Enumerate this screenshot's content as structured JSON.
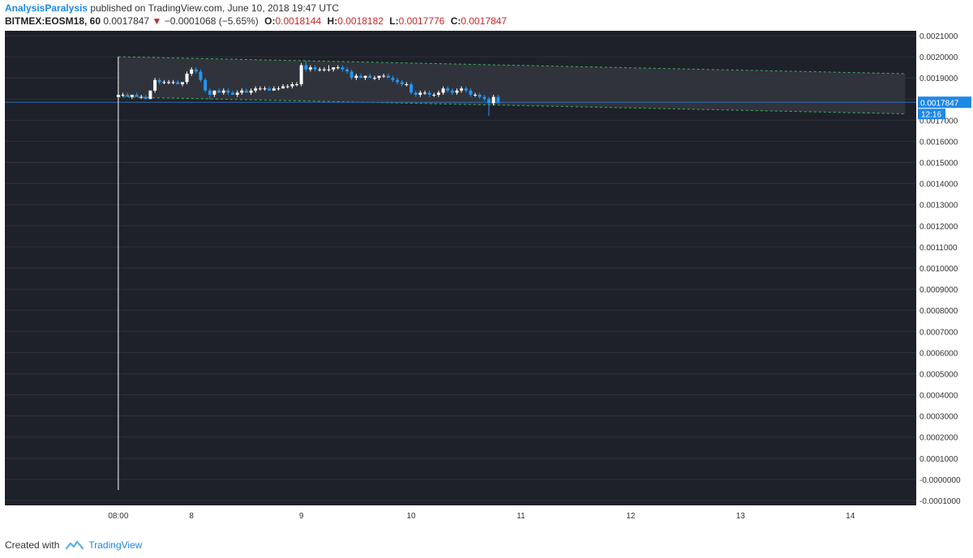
{
  "header": {
    "author": "AnalysisParalysis",
    "published": "published on TradingView.com, June 10, 2018 19:47 UTC",
    "symbol": "BITMEX:EOSM18, 60",
    "last": "0.0017847",
    "change_arrow": "▼",
    "change": "−0.0001068 (−5.65%)",
    "o_label": "O:",
    "o_value": "0.0018144",
    "h_label": "H:",
    "h_value": "0.0018182",
    "l_label": "L:",
    "l_value": "0.0017776",
    "c_label": "C:",
    "c_value": "0.0017847"
  },
  "footer": {
    "created_with": "Created with",
    "brand": "TradingView",
    "logo_icon": "tradingview-logo-icon"
  },
  "colors": {
    "background": "#1e2129",
    "grid_line": "#2e323c",
    "bull": "#ffffff",
    "bear": "#2196f3",
    "channel_line": "#3fae62",
    "channel_fill": "#32353d",
    "price_line": "#2f6fb0",
    "price_label_bg": "#1e88e5"
  },
  "chart_data": {
    "type": "candlestick",
    "y_axis": {
      "ylim": [
        -0.0001,
        0.0021
      ],
      "ticks": [
        "0.0021000",
        "0.0020000",
        "0.0019000",
        "0.0018000",
        "0.0017000",
        "0.0016000",
        "0.0015000",
        "0.0014000",
        "0.0013000",
        "0.0012000",
        "0.0011000",
        "0.0010000",
        "0.0009000",
        "0.0008000",
        "0.0007000",
        "0.0006000",
        "0.0005000",
        "0.0004000",
        "0.0003000",
        "0.0002000",
        "0.0001000",
        "-0.0000000",
        "-0.0001000"
      ]
    },
    "x_axis": {
      "xlim_days": [
        6.3,
        14.6
      ],
      "ticks": [
        {
          "label": "08:00",
          "day": 7.333
        },
        {
          "label": "8",
          "day": 8
        },
        {
          "label": "9",
          "day": 9
        },
        {
          "label": "10",
          "day": 10
        },
        {
          "label": "11",
          "day": 11
        },
        {
          "label": "12",
          "day": 12
        },
        {
          "label": "13",
          "day": 13
        },
        {
          "label": "14",
          "day": 14
        }
      ]
    },
    "last_price": {
      "value": 0.0017847,
      "label": "0.0017847",
      "countdown": "12:16"
    },
    "channel": {
      "upper": [
        [
          7.333,
          0.002
        ],
        [
          14.5,
          0.00192
        ]
      ],
      "lower": [
        [
          7.333,
          0.00181
        ],
        [
          14.5,
          0.00173
        ]
      ]
    },
    "candles": [
      {
        "t": 7.333,
        "o": 0.00181,
        "h": 0.002,
        "l": -5e-05,
        "c": 0.00182
      },
      {
        "t": 7.375,
        "o": 0.00182,
        "h": 0.00183,
        "l": 0.00181,
        "c": 0.00182
      },
      {
        "t": 7.417,
        "o": 0.00182,
        "h": 0.00183,
        "l": 0.00181,
        "c": 0.00181
      },
      {
        "t": 7.458,
        "o": 0.00181,
        "h": 0.00182,
        "l": 0.0018,
        "c": 0.00182
      },
      {
        "t": 7.5,
        "o": 0.00182,
        "h": 0.00183,
        "l": 0.00181,
        "c": 0.00181
      },
      {
        "t": 7.542,
        "o": 0.00181,
        "h": 0.00182,
        "l": 0.0018,
        "c": 0.00181
      },
      {
        "t": 7.583,
        "o": 0.00181,
        "h": 0.00182,
        "l": 0.0018,
        "c": 0.0018
      },
      {
        "t": 7.625,
        "o": 0.0018,
        "h": 0.00184,
        "l": 0.0018,
        "c": 0.00184
      },
      {
        "t": 7.667,
        "o": 0.00184,
        "h": 0.0019,
        "l": 0.00183,
        "c": 0.00189
      },
      {
        "t": 7.708,
        "o": 0.00189,
        "h": 0.0019,
        "l": 0.00187,
        "c": 0.00188
      },
      {
        "t": 7.75,
        "o": 0.00188,
        "h": 0.00189,
        "l": 0.00187,
        "c": 0.00188
      },
      {
        "t": 7.792,
        "o": 0.00188,
        "h": 0.00189,
        "l": 0.00187,
        "c": 0.00188
      },
      {
        "t": 7.833,
        "o": 0.00188,
        "h": 0.00189,
        "l": 0.00187,
        "c": 0.00188
      },
      {
        "t": 7.875,
        "o": 0.00188,
        "h": 0.00189,
        "l": 0.00187,
        "c": 0.00187
      },
      {
        "t": 7.917,
        "o": 0.00187,
        "h": 0.00188,
        "l": 0.00186,
        "c": 0.00188
      },
      {
        "t": 7.958,
        "o": 0.00188,
        "h": 0.00193,
        "l": 0.00187,
        "c": 0.00192
      },
      {
        "t": 8.0,
        "o": 0.00192,
        "h": 0.00195,
        "l": 0.00191,
        "c": 0.00194
      },
      {
        "t": 8.042,
        "o": 0.00194,
        "h": 0.00195,
        "l": 0.00192,
        "c": 0.00193
      },
      {
        "t": 8.083,
        "o": 0.00193,
        "h": 0.00194,
        "l": 0.00188,
        "c": 0.00189
      },
      {
        "t": 8.125,
        "o": 0.00189,
        "h": 0.0019,
        "l": 0.00183,
        "c": 0.00184
      },
      {
        "t": 8.167,
        "o": 0.00184,
        "h": 0.00185,
        "l": 0.0018,
        "c": 0.00182
      },
      {
        "t": 8.208,
        "o": 0.00182,
        "h": 0.00184,
        "l": 0.00181,
        "c": 0.00184
      },
      {
        "t": 8.25,
        "o": 0.00184,
        "h": 0.00185,
        "l": 0.00183,
        "c": 0.00183
      },
      {
        "t": 8.292,
        "o": 0.00183,
        "h": 0.00185,
        "l": 0.00182,
        "c": 0.00184
      },
      {
        "t": 8.333,
        "o": 0.00184,
        "h": 0.00185,
        "l": 0.00182,
        "c": 0.00183
      },
      {
        "t": 8.375,
        "o": 0.00183,
        "h": 0.00184,
        "l": 0.00182,
        "c": 0.00182
      },
      {
        "t": 8.417,
        "o": 0.00182,
        "h": 0.00184,
        "l": 0.00181,
        "c": 0.00183
      },
      {
        "t": 8.458,
        "o": 0.00183,
        "h": 0.00185,
        "l": 0.00182,
        "c": 0.00184
      },
      {
        "t": 8.5,
        "o": 0.00184,
        "h": 0.00185,
        "l": 0.00183,
        "c": 0.00183
      },
      {
        "t": 8.542,
        "o": 0.00183,
        "h": 0.00185,
        "l": 0.00182,
        "c": 0.00184
      },
      {
        "t": 8.583,
        "o": 0.00184,
        "h": 0.00186,
        "l": 0.00183,
        "c": 0.00185
      },
      {
        "t": 8.625,
        "o": 0.00185,
        "h": 0.00186,
        "l": 0.00184,
        "c": 0.00185
      },
      {
        "t": 8.667,
        "o": 0.00185,
        "h": 0.00186,
        "l": 0.00184,
        "c": 0.00185
      },
      {
        "t": 8.708,
        "o": 0.00185,
        "h": 0.00186,
        "l": 0.00184,
        "c": 0.00184
      },
      {
        "t": 8.75,
        "o": 0.00184,
        "h": 0.00186,
        "l": 0.00184,
        "c": 0.00185
      },
      {
        "t": 8.792,
        "o": 0.00185,
        "h": 0.00186,
        "l": 0.00184,
        "c": 0.00185
      },
      {
        "t": 8.833,
        "o": 0.00185,
        "h": 0.00187,
        "l": 0.00185,
        "c": 0.00186
      },
      {
        "t": 8.875,
        "o": 0.00186,
        "h": 0.00187,
        "l": 0.00185,
        "c": 0.00186
      },
      {
        "t": 8.917,
        "o": 0.00186,
        "h": 0.00188,
        "l": 0.00185,
        "c": 0.00187
      },
      {
        "t": 8.958,
        "o": 0.00187,
        "h": 0.00188,
        "l": 0.00186,
        "c": 0.00187
      },
      {
        "t": 9.0,
        "o": 0.00187,
        "h": 0.00197,
        "l": 0.00186,
        "c": 0.00196
      },
      {
        "t": 9.042,
        "o": 0.00196,
        "h": 0.00198,
        "l": 0.00193,
        "c": 0.00194
      },
      {
        "t": 9.083,
        "o": 0.00194,
        "h": 0.00196,
        "l": 0.00193,
        "c": 0.00195
      },
      {
        "t": 9.125,
        "o": 0.00195,
        "h": 0.00196,
        "l": 0.00193,
        "c": 0.00194
      },
      {
        "t": 9.167,
        "o": 0.00194,
        "h": 0.00195,
        "l": 0.00193,
        "c": 0.00194
      },
      {
        "t": 9.208,
        "o": 0.00194,
        "h": 0.00195,
        "l": 0.00193,
        "c": 0.00194
      },
      {
        "t": 9.25,
        "o": 0.00194,
        "h": 0.00196,
        "l": 0.00193,
        "c": 0.00194
      },
      {
        "t": 9.292,
        "o": 0.00194,
        "h": 0.00195,
        "l": 0.00193,
        "c": 0.00195
      },
      {
        "t": 9.333,
        "o": 0.00195,
        "h": 0.00196,
        "l": 0.00194,
        "c": 0.00195
      },
      {
        "t": 9.375,
        "o": 0.00195,
        "h": 0.00196,
        "l": 0.00193,
        "c": 0.00194
      },
      {
        "t": 9.417,
        "o": 0.00194,
        "h": 0.00195,
        "l": 0.00192,
        "c": 0.00193
      },
      {
        "t": 9.458,
        "o": 0.00193,
        "h": 0.00194,
        "l": 0.00189,
        "c": 0.0019
      },
      {
        "t": 9.5,
        "o": 0.0019,
        "h": 0.00192,
        "l": 0.00189,
        "c": 0.00191
      },
      {
        "t": 9.542,
        "o": 0.00191,
        "h": 0.00192,
        "l": 0.0019,
        "c": 0.0019
      },
      {
        "t": 9.583,
        "o": 0.0019,
        "h": 0.00191,
        "l": 0.00189,
        "c": 0.00191
      },
      {
        "t": 9.625,
        "o": 0.00191,
        "h": 0.00192,
        "l": 0.0019,
        "c": 0.0019
      },
      {
        "t": 9.667,
        "o": 0.0019,
        "h": 0.00191,
        "l": 0.00189,
        "c": 0.0019
      },
      {
        "t": 9.708,
        "o": 0.0019,
        "h": 0.00191,
        "l": 0.00189,
        "c": 0.00191
      },
      {
        "t": 9.75,
        "o": 0.00191,
        "h": 0.00192,
        "l": 0.0019,
        "c": 0.00191
      },
      {
        "t": 9.792,
        "o": 0.00191,
        "h": 0.00192,
        "l": 0.0019,
        "c": 0.0019
      },
      {
        "t": 9.833,
        "o": 0.0019,
        "h": 0.00191,
        "l": 0.00188,
        "c": 0.00189
      },
      {
        "t": 9.875,
        "o": 0.00189,
        "h": 0.0019,
        "l": 0.00187,
        "c": 0.00188
      },
      {
        "t": 9.917,
        "o": 0.00188,
        "h": 0.00189,
        "l": 0.00186,
        "c": 0.00187
      },
      {
        "t": 9.958,
        "o": 0.00187,
        "h": 0.00188,
        "l": 0.00186,
        "c": 0.00187
      },
      {
        "t": 10.0,
        "o": 0.00187,
        "h": 0.00188,
        "l": 0.00182,
        "c": 0.00183
      },
      {
        "t": 10.042,
        "o": 0.00183,
        "h": 0.00184,
        "l": 0.00181,
        "c": 0.00182
      },
      {
        "t": 10.083,
        "o": 0.00182,
        "h": 0.00184,
        "l": 0.00181,
        "c": 0.00183
      },
      {
        "t": 10.125,
        "o": 0.00183,
        "h": 0.00184,
        "l": 0.00182,
        "c": 0.00183
      },
      {
        "t": 10.167,
        "o": 0.00183,
        "h": 0.00184,
        "l": 0.00181,
        "c": 0.00182
      },
      {
        "t": 10.208,
        "o": 0.00182,
        "h": 0.00183,
        "l": 0.00181,
        "c": 0.00182
      },
      {
        "t": 10.25,
        "o": 0.00182,
        "h": 0.00184,
        "l": 0.00181,
        "c": 0.00183
      },
      {
        "t": 10.292,
        "o": 0.00183,
        "h": 0.00186,
        "l": 0.00182,
        "c": 0.00185
      },
      {
        "t": 10.333,
        "o": 0.00185,
        "h": 0.00186,
        "l": 0.00183,
        "c": 0.00184
      },
      {
        "t": 10.375,
        "o": 0.00184,
        "h": 0.00185,
        "l": 0.00182,
        "c": 0.00183
      },
      {
        "t": 10.417,
        "o": 0.00183,
        "h": 0.00185,
        "l": 0.00182,
        "c": 0.00184
      },
      {
        "t": 10.458,
        "o": 0.00184,
        "h": 0.00186,
        "l": 0.00183,
        "c": 0.00185
      },
      {
        "t": 10.5,
        "o": 0.00185,
        "h": 0.00186,
        "l": 0.00183,
        "c": 0.00184
      },
      {
        "t": 10.542,
        "o": 0.00184,
        "h": 0.00185,
        "l": 0.00181,
        "c": 0.00182
      },
      {
        "t": 10.583,
        "o": 0.00182,
        "h": 0.00183,
        "l": 0.00181,
        "c": 0.00182
      },
      {
        "t": 10.625,
        "o": 0.00182,
        "h": 0.00183,
        "l": 0.0018,
        "c": 0.00181
      },
      {
        "t": 10.667,
        "o": 0.00181,
        "h": 0.00182,
        "l": 0.00179,
        "c": 0.0018
      },
      {
        "t": 10.708,
        "o": 0.0018,
        "h": 0.00181,
        "l": 0.00172,
        "c": 0.00178
      },
      {
        "t": 10.75,
        "o": 0.00178,
        "h": 0.00182,
        "l": 0.00177,
        "c": 0.00181
      },
      {
        "t": 10.792,
        "o": 0.00181,
        "h": 0.00182,
        "l": 0.00178,
        "c": 0.00178
      }
    ]
  }
}
